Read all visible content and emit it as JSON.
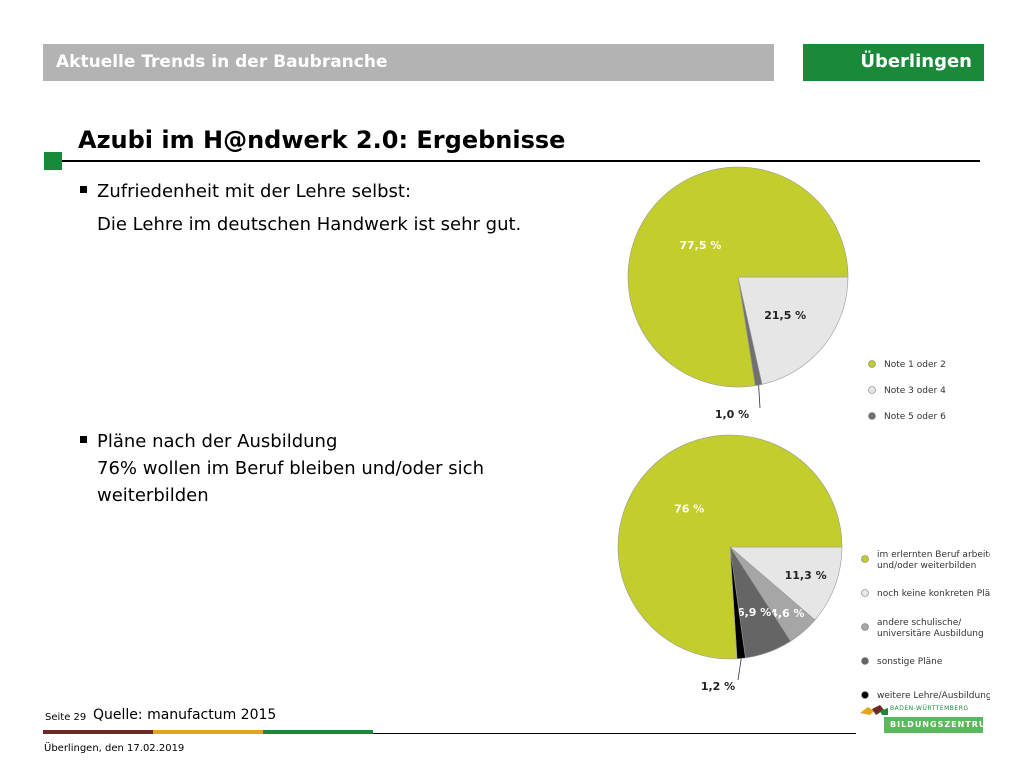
{
  "header": {
    "topic": "Aktuelle Trends in der Baubranche",
    "city": "Überlingen"
  },
  "title": "Azubi im H@ndwerk 2.0: Ergebnisse",
  "bullets": [
    {
      "heading": "Zufriedenheit mit der Lehre selbst:",
      "lines": [
        "Die Lehre im deutschen Handwerk ist sehr gut."
      ]
    },
    {
      "heading": "Pläne nach der Ausbildung",
      "lines": [
        "76% wollen im Beruf bleiben und/oder sich",
        " weiterbilden"
      ]
    }
  ],
  "chart_data": [
    {
      "type": "pie",
      "values": [
        77.5,
        21.5,
        1.0
      ],
      "labels": [
        "77,5 %",
        "21,5 %",
        "1,0 %"
      ],
      "legend": [
        "Note 1 oder 2",
        "Note 3 oder 4",
        "Note 5 oder 6"
      ],
      "colors": [
        "#c3cd2b",
        "#e6e6e6",
        "#707070"
      ],
      "legend_placement": "right"
    },
    {
      "type": "pie",
      "values": [
        76,
        11.3,
        4.6,
        6.9,
        1.2
      ],
      "labels": [
        "76 %",
        "11,3 %",
        "4,6 %",
        "6,9 %",
        "1,2 %"
      ],
      "legend": [
        "im erlernten Beruf arbeiten und/oder weiterbilden",
        "noch keine konkreten Pläne",
        "andere schulische/ universitäre Ausbildung",
        "sonstige Pläne",
        "weitere Lehre/Ausbildung"
      ],
      "colors": [
        "#c3cd2b",
        "#e6e6e6",
        "#a6a6a6",
        "#656565",
        "#000000"
      ],
      "legend_placement": "right"
    }
  ],
  "footer": {
    "page": "Seite 29",
    "source": "Quelle: manufactum 2015",
    "date": "Überlingen, den 17.02.2019",
    "logo_top": "BADEN-WÜRTTEMBERG",
    "logo_bottom": "BILDUNGSZENTRUM",
    "stripe_colors": [
      "#6b2b23",
      "#e3a51b",
      "#1a8a3a"
    ]
  }
}
